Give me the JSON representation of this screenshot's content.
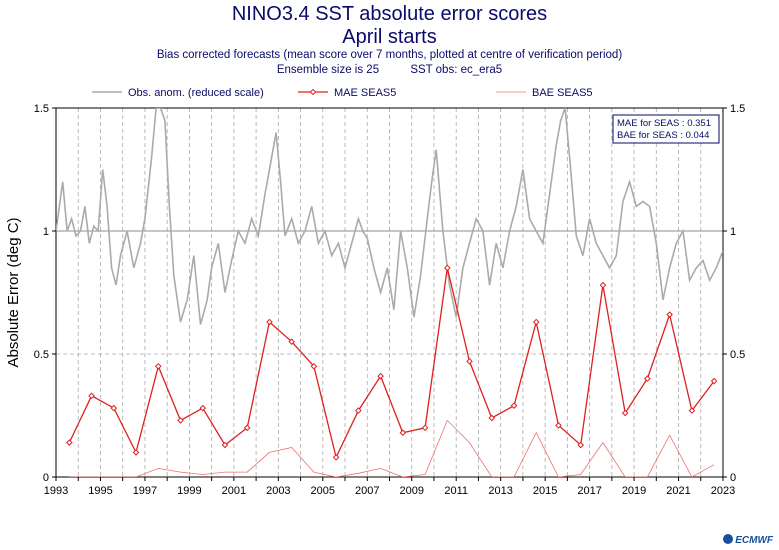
{
  "title_line1": "NINO3.4 SST absolute error scores",
  "title_line2": "April starts",
  "subtitle_line1": "Bias corrected forecasts (mean score over 7 months, plotted at centre of verification period)",
  "subtitle_ensemble": "Ensemble size is 25",
  "subtitle_obs": "SST obs: ec_era5",
  "logo_text": "ECMWF",
  "stats": {
    "mae": "MAE for SEAS : 0.351",
    "bae": "BAE for SEAS : 0.044"
  },
  "colors": {
    "title": "#0a0a6a",
    "obs": "#aaaaaa",
    "mae": "#e02020",
    "bae": "#f07070",
    "grid": "#aaaaaa"
  },
  "chart_data": {
    "type": "line",
    "ylabel": "Absolute Error (deg C)",
    "xlim": [
      1993,
      2023
    ],
    "ylim": [
      0,
      1.5
    ],
    "xticks": [
      "1993",
      "1995",
      "1997",
      "1999",
      "2001",
      "2003",
      "2005",
      "2007",
      "2009",
      "2011",
      "2013",
      "2015",
      "2017",
      "2019",
      "2021",
      "2023"
    ],
    "yticks": [
      "0",
      "0.5",
      "1",
      "1.5"
    ],
    "grid": true,
    "legend_position": "top",
    "series": [
      {
        "name": "Obs. anom. (reduced scale)",
        "style": "line",
        "x": [
          1993.0,
          1993.3,
          1993.5,
          1993.7,
          1993.9,
          1994.1,
          1994.3,
          1994.5,
          1994.7,
          1994.9,
          1995.1,
          1995.3,
          1995.5,
          1995.7,
          1995.9,
          1996.2,
          1996.5,
          1996.8,
          1997.0,
          1997.3,
          1997.5,
          1997.7,
          1997.9,
          1998.1,
          1998.3,
          1998.6,
          1998.9,
          1999.2,
          1999.5,
          1999.8,
          2000.0,
          2000.3,
          2000.6,
          2000.9,
          2001.2,
          2001.5,
          2001.8,
          2002.1,
          2002.4,
          2002.7,
          2002.9,
          2003.1,
          2003.3,
          2003.6,
          2003.9,
          2004.2,
          2004.5,
          2004.8,
          2005.1,
          2005.4,
          2005.7,
          2006.0,
          2006.3,
          2006.6,
          2006.8,
          2007.0,
          2007.3,
          2007.6,
          2007.9,
          2008.2,
          2008.5,
          2008.8,
          2009.1,
          2009.4,
          2009.7,
          2009.9,
          2010.1,
          2010.4,
          2010.7,
          2011.0,
          2011.3,
          2011.6,
          2011.9,
          2012.2,
          2012.5,
          2012.8,
          2013.1,
          2013.4,
          2013.7,
          2014.0,
          2014.3,
          2014.6,
          2014.9,
          2015.2,
          2015.5,
          2015.7,
          2015.9,
          2016.1,
          2016.4,
          2016.7,
          2017.0,
          2017.3,
          2017.6,
          2017.9,
          2018.2,
          2018.5,
          2018.8,
          2019.1,
          2019.4,
          2019.7,
          2020.0,
          2020.3,
          2020.6,
          2020.9,
          2021.2,
          2021.5,
          2021.8,
          2022.1,
          2022.4,
          2022.7,
          2023.0
        ],
        "y": [
          1.0,
          1.2,
          1.0,
          1.05,
          0.98,
          1.0,
          1.1,
          0.95,
          1.02,
          1.0,
          1.25,
          1.1,
          0.85,
          0.78,
          0.9,
          1.0,
          0.85,
          0.95,
          1.05,
          1.3,
          1.5,
          1.5,
          1.45,
          1.1,
          0.82,
          0.63,
          0.72,
          0.9,
          0.62,
          0.72,
          0.85,
          0.95,
          0.75,
          0.88,
          1.0,
          0.95,
          1.05,
          0.98,
          1.15,
          1.3,
          1.4,
          1.2,
          0.98,
          1.05,
          0.95,
          1.0,
          1.1,
          0.95,
          1.0,
          0.9,
          0.95,
          0.85,
          0.95,
          1.05,
          1.0,
          0.97,
          0.85,
          0.75,
          0.85,
          0.68,
          1.0,
          0.85,
          0.65,
          0.82,
          1.05,
          1.2,
          1.33,
          1.0,
          0.78,
          0.65,
          0.85,
          0.95,
          1.05,
          1.0,
          0.78,
          0.95,
          0.85,
          1.0,
          1.1,
          1.25,
          1.05,
          1.0,
          0.95,
          1.15,
          1.35,
          1.45,
          1.5,
          1.3,
          0.98,
          0.9,
          1.05,
          0.95,
          0.9,
          0.85,
          0.9,
          1.12,
          1.2,
          1.1,
          1.12,
          1.1,
          0.95,
          0.72,
          0.85,
          0.95,
          1.0,
          0.8,
          0.85,
          0.88,
          0.8,
          0.85,
          0.92
        ]
      },
      {
        "name": "MAE SEAS5",
        "style": "line-marker",
        "x": [
          1993.6,
          1994.6,
          1995.6,
          1996.6,
          1997.6,
          1998.6,
          1999.6,
          2000.6,
          2001.6,
          2002.6,
          2003.6,
          2004.6,
          2005.6,
          2006.6,
          2007.6,
          2008.6,
          2009.6,
          2010.6,
          2011.6,
          2012.6,
          2013.6,
          2014.6,
          2015.6,
          2016.6,
          2017.6,
          2018.6,
          2019.6,
          2020.6,
          2021.6,
          2022.6
        ],
        "y": [
          0.14,
          0.33,
          0.28,
          0.1,
          0.45,
          0.23,
          0.28,
          0.13,
          0.2,
          0.63,
          0.55,
          0.45,
          0.08,
          0.27,
          0.41,
          0.18,
          0.2,
          0.85,
          0.47,
          0.24,
          0.29,
          0.63,
          0.21,
          0.13,
          0.78,
          0.26,
          0.4,
          0.66,
          0.27,
          0.39
        ]
      },
      {
        "name": "BAE SEAS5",
        "style": "line",
        "x": [
          1993.6,
          1994.6,
          1995.6,
          1996.6,
          1997.6,
          1998.6,
          1999.6,
          2000.6,
          2001.6,
          2002.6,
          2003.6,
          2004.6,
          2005.6,
          2006.6,
          2007.6,
          2008.6,
          2009.6,
          2010.6,
          2011.6,
          2012.6,
          2013.6,
          2014.6,
          2015.6,
          2016.6,
          2017.6,
          2018.6,
          2019.6,
          2020.6,
          2021.6,
          2022.6
        ],
        "y": [
          0.0,
          0.0,
          0.0,
          0.0,
          0.035,
          0.02,
          0.01,
          0.02,
          0.02,
          0.1,
          0.12,
          0.02,
          0.0,
          0.015,
          0.035,
          0.0,
          0.01,
          0.23,
          0.14,
          0.0,
          0.0,
          0.18,
          0.0,
          0.01,
          0.14,
          0.0,
          0.0,
          0.17,
          0.0,
          0.05
        ]
      }
    ]
  }
}
